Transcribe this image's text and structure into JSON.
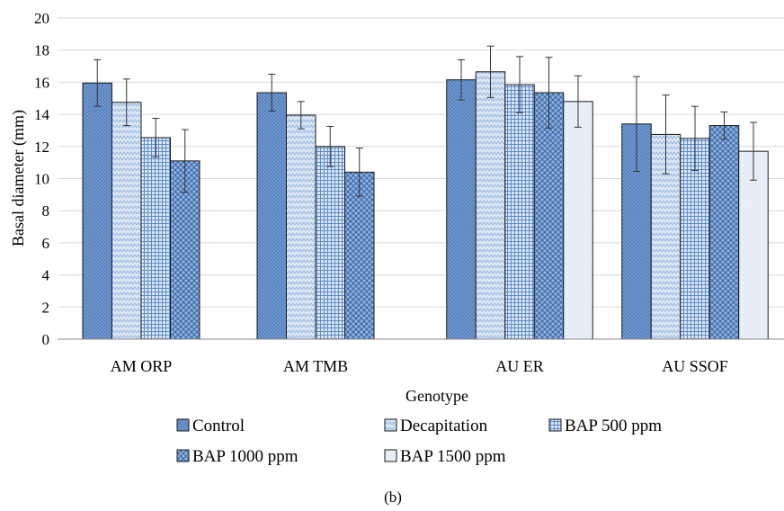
{
  "chart_data": {
    "type": "bar",
    "title": "",
    "xlabel": "Genotype",
    "ylabel": "Basal diameter (mm)",
    "caption": "(b)",
    "ylim": [
      0,
      20
    ],
    "yticks": [
      0,
      2,
      4,
      6,
      8,
      10,
      12,
      14,
      16,
      18,
      20
    ],
    "grid": true,
    "legend_position": "bottom",
    "categories": [
      "AM ORP",
      "AM TMB",
      "AU ER",
      "AU SSOF"
    ],
    "series": [
      {
        "name": "Control",
        "color": "#6f97cf",
        "pattern": "dense-dots",
        "values": [
          15.95,
          15.35,
          16.15,
          13.4
        ],
        "errors": [
          1.45,
          1.15,
          1.25,
          2.95
        ]
      },
      {
        "name": "Decapitation",
        "color": "#c6d7ee",
        "pattern": "zigzag",
        "values": [
          14.75,
          13.95,
          16.65,
          12.75
        ],
        "errors": [
          1.45,
          0.85,
          1.6,
          2.45
        ]
      },
      {
        "name": "BAP 500 ppm",
        "color": "#b5cbea",
        "pattern": "grid",
        "values": [
          12.55,
          12.0,
          15.85,
          12.5
        ],
        "errors": [
          1.2,
          1.25,
          1.75,
          2.0
        ]
      },
      {
        "name": "BAP 1000 ppm",
        "color": "#7aa2d6",
        "pattern": "diamond",
        "values": [
          11.1,
          10.4,
          15.35,
          13.3
        ],
        "errors": [
          1.95,
          1.5,
          2.2,
          0.85
        ]
      },
      {
        "name": "BAP 1500 ppm",
        "color": "#e4ecf7",
        "pattern": "fine",
        "values": [
          null,
          null,
          14.8,
          11.7
        ],
        "errors": [
          null,
          null,
          1.6,
          1.8
        ]
      }
    ]
  }
}
